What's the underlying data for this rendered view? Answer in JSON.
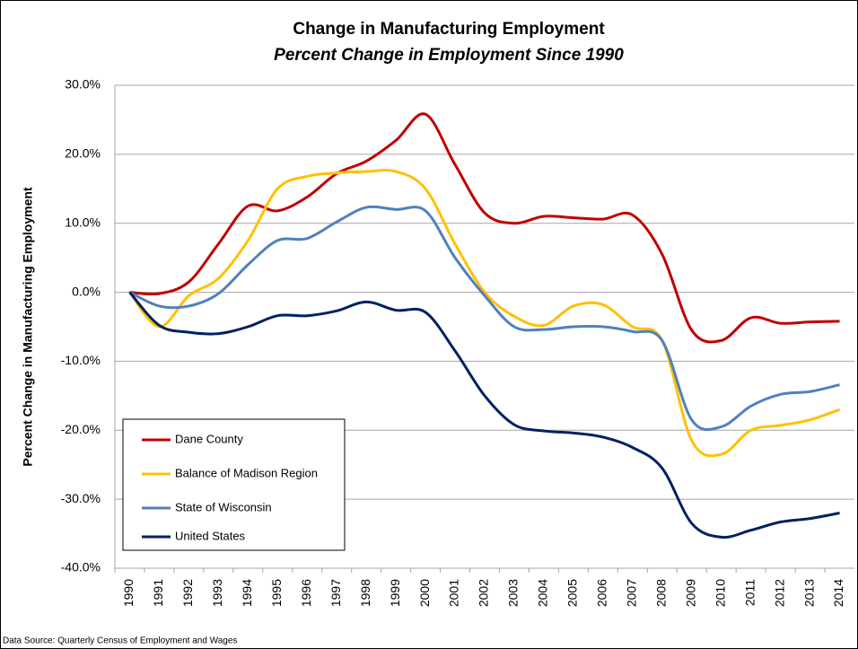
{
  "chart_data": {
    "type": "line",
    "title": "Change in Manufacturing Employment",
    "subtitle": "Percent Change in Employment Since 1990",
    "y_label": "Percent Change in Manufacturing Employment",
    "source": "Data Source: Quarterly Census of Employment and Wages",
    "categories": [
      "1990",
      "1991",
      "1992",
      "1993",
      "1994",
      "1995",
      "1996",
      "1997",
      "1998",
      "1999",
      "2000",
      "2001",
      "2002",
      "2003",
      "2004",
      "2005",
      "2006",
      "2007",
      "2008",
      "2009",
      "2010",
      "2011",
      "2012",
      "2013",
      "2014"
    ],
    "series": [
      {
        "name": "Dane County",
        "color": "#c00000",
        "values": [
          0,
          -0.2,
          1.5,
          7,
          12.5,
          11.8,
          13.8,
          17.2,
          19,
          22,
          25.8,
          18.5,
          11.5,
          10,
          11,
          10.8,
          10.6,
          11.2,
          5.5,
          -5.5,
          -7,
          -3.7,
          -4.5,
          -4.3,
          -4.2
        ]
      },
      {
        "name": "Balance of Madison Region",
        "color": "#ffc000",
        "values": [
          0,
          -5,
          -0.5,
          2,
          7.5,
          15,
          16.8,
          17.3,
          17.5,
          17.5,
          15,
          7,
          0,
          -3.5,
          -4.8,
          -2,
          -1.8,
          -5,
          -7,
          -21.5,
          -23.5,
          -20,
          -19.3,
          -18.5,
          -17
        ]
      },
      {
        "name": "State of Wisconsin",
        "color": "#4f81bd",
        "values": [
          0,
          -2,
          -2,
          -0.2,
          4,
          7.5,
          7.8,
          10.2,
          12.3,
          12,
          11.8,
          5,
          -0.5,
          -5,
          -5.4,
          -5,
          -5,
          -5.7,
          -7,
          -18.5,
          -19.5,
          -16.5,
          -14.8,
          -14.4,
          -13.4
        ]
      },
      {
        "name": "United States",
        "color": "#002060",
        "values": [
          0,
          -4.8,
          -5.8,
          -6,
          -5,
          -3.4,
          -3.4,
          -2.7,
          -1.4,
          -2.6,
          -2.9,
          -8.5,
          -15,
          -19.2,
          -20.1,
          -20.4,
          -21,
          -22.5,
          -25.5,
          -33.5,
          -35.5,
          -34.5,
          -33.3,
          -32.8,
          -32
        ]
      }
    ],
    "ylim": [
      -40,
      30
    ],
    "yticks": [
      {
        "value": -40,
        "label": "-40.0%"
      },
      {
        "value": -30,
        "label": "-30.0%"
      },
      {
        "value": -20,
        "label": "-20.0%"
      },
      {
        "value": -10,
        "label": "-10.0%"
      },
      {
        "value": 0,
        "label": "0.0%"
      },
      {
        "value": 10,
        "label": "10.0%"
      },
      {
        "value": 20,
        "label": "20.0%"
      },
      {
        "value": 30,
        "label": "30.0%"
      }
    ],
    "grid": true,
    "legend": "lower left"
  }
}
